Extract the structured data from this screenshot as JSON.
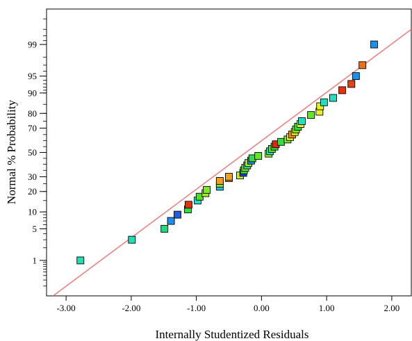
{
  "chart_data": {
    "type": "scatter",
    "xlabel": "Internally Studentized Residuals",
    "ylabel": "Normal % Probability",
    "xlim": [
      -3.3,
      2.3
    ],
    "x_ticks": [
      -3.0,
      -2.0,
      -1.0,
      0.0,
      1.0,
      2.0
    ],
    "x_tick_labels": [
      "-3.00",
      "-2.00",
      "-1.00",
      "0.00",
      "1.00",
      "2.00"
    ],
    "y_scale": "normal-probability",
    "ylim": [
      0.1,
      99.9
    ],
    "y_ticks": [
      1,
      5,
      10,
      20,
      30,
      50,
      70,
      80,
      90,
      95,
      99
    ],
    "y_tick_labels": [
      "1",
      "5",
      "10",
      "20",
      "30",
      "50",
      "70",
      "80",
      "90",
      "95",
      "99"
    ],
    "grid": false,
    "reference_line": {
      "color": "#f08080",
      "points": [
        [
          -3.2,
          0.1
        ],
        [
          2.3,
          99.6
        ]
      ]
    },
    "points": [
      {
        "x": -2.78,
        "y": 1,
        "color": "#1ee0b4"
      },
      {
        "x": -1.99,
        "y": 3,
        "color": "#1ee0b4"
      },
      {
        "x": -1.49,
        "y": 5,
        "color": "#24d880"
      },
      {
        "x": -1.39,
        "y": 7,
        "color": "#1e90e8"
      },
      {
        "x": -1.29,
        "y": 9,
        "color": "#2060e0"
      },
      {
        "x": -1.13,
        "y": 11,
        "color": "#30e040"
      },
      {
        "x": -1.12,
        "y": 13,
        "color": "#e83010"
      },
      {
        "x": -0.98,
        "y": 15,
        "color": "#20e0c8"
      },
      {
        "x": -0.95,
        "y": 17,
        "color": "#50e020"
      },
      {
        "x": -0.86,
        "y": 19,
        "color": "#a0f020"
      },
      {
        "x": -0.84,
        "y": 21,
        "color": "#80e820"
      },
      {
        "x": -0.64,
        "y": 23,
        "color": "#20c0e0"
      },
      {
        "x": -0.64,
        "y": 25,
        "color": "#80e820"
      },
      {
        "x": -0.64,
        "y": 27,
        "color": "#f0a020"
      },
      {
        "x": -0.5,
        "y": 29,
        "color": "#f09020"
      },
      {
        "x": -0.5,
        "y": 30,
        "color": "#f0a020"
      },
      {
        "x": -0.33,
        "y": 31,
        "color": "#c0f020"
      },
      {
        "x": -0.28,
        "y": 33,
        "color": "#2040e0"
      },
      {
        "x": -0.27,
        "y": 35,
        "color": "#30e040"
      },
      {
        "x": -0.25,
        "y": 37,
        "color": "#80e820"
      },
      {
        "x": -0.22,
        "y": 39,
        "color": "#20e0a0"
      },
      {
        "x": -0.2,
        "y": 41,
        "color": "#a0f020"
      },
      {
        "x": -0.16,
        "y": 43,
        "color": "#1e90e8"
      },
      {
        "x": -0.14,
        "y": 45,
        "color": "#30e040"
      },
      {
        "x": -0.05,
        "y": 47,
        "color": "#60e820"
      },
      {
        "x": 0.11,
        "y": 49,
        "color": "#a0f020"
      },
      {
        "x": 0.13,
        "y": 51,
        "color": "#20e0c0"
      },
      {
        "x": 0.16,
        "y": 53,
        "color": "#50e820"
      },
      {
        "x": 0.2,
        "y": 55,
        "color": "#30e040"
      },
      {
        "x": 0.22,
        "y": 57,
        "color": "#e82010"
      },
      {
        "x": 0.3,
        "y": 59,
        "color": "#30e040"
      },
      {
        "x": 0.4,
        "y": 61,
        "color": "#80e820"
      },
      {
        "x": 0.44,
        "y": 63,
        "color": "#e8f020"
      },
      {
        "x": 0.47,
        "y": 65,
        "color": "#e89020"
      },
      {
        "x": 0.51,
        "y": 67,
        "color": "#f0f020"
      },
      {
        "x": 0.53,
        "y": 69,
        "color": "#80e820"
      },
      {
        "x": 0.56,
        "y": 71,
        "color": "#30e040"
      },
      {
        "x": 0.6,
        "y": 73,
        "color": "#f0f020"
      },
      {
        "x": 0.62,
        "y": 75,
        "color": "#20e0c0"
      },
      {
        "x": 0.76,
        "y": 79,
        "color": "#60e820"
      },
      {
        "x": 0.89,
        "y": 81,
        "color": "#e8f020"
      },
      {
        "x": 0.9,
        "y": 84,
        "color": "#e8f020"
      },
      {
        "x": 0.96,
        "y": 86,
        "color": "#20e0c0"
      },
      {
        "x": 1.1,
        "y": 88,
        "color": "#20e0c0"
      },
      {
        "x": 1.24,
        "y": 91,
        "color": "#e83010"
      },
      {
        "x": 1.38,
        "y": 93,
        "color": "#e84010"
      },
      {
        "x": 1.45,
        "y": 95,
        "color": "#1e90e8"
      },
      {
        "x": 1.55,
        "y": 97,
        "color": "#f07010"
      },
      {
        "x": 1.73,
        "y": 99,
        "color": "#1e90e8"
      }
    ]
  }
}
